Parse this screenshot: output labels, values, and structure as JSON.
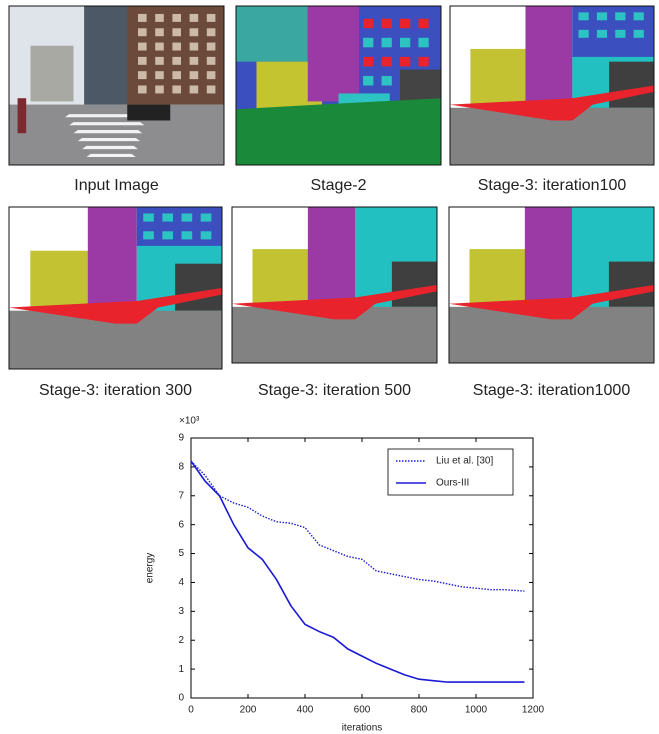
{
  "panels": [
    {
      "caption": "Input Image"
    },
    {
      "caption": "Stage-2"
    },
    {
      "caption": "Stage-3: iteration100"
    },
    {
      "caption": "Stage-3: iteration 300"
    },
    {
      "caption": "Stage-3: iteration 500"
    },
    {
      "caption": "Stage-3: iteration1000"
    }
  ],
  "chart_data": {
    "type": "line",
    "xlabel": "iterations",
    "ylabel": "energy",
    "y_multiplier": "×10³",
    "x": [
      0,
      50,
      100,
      150,
      200,
      250,
      300,
      350,
      400,
      450,
      500,
      550,
      600,
      650,
      700,
      750,
      800,
      850,
      900,
      950,
      1000,
      1050,
      1100,
      1170
    ],
    "series": [
      {
        "name": "Liu et al. [30]",
        "color": "#1a1ad6",
        "line_style": "dotted",
        "values": [
          8.2,
          7.7,
          7.0,
          6.75,
          6.6,
          6.3,
          6.1,
          6.05,
          5.9,
          5.3,
          5.1,
          4.9,
          4.8,
          4.4,
          4.3,
          4.2,
          4.1,
          4.05,
          3.95,
          3.85,
          3.8,
          3.75,
          3.75,
          3.7
        ]
      },
      {
        "name": "Ours-III",
        "color": "#1a1ad6",
        "line_style": "solid",
        "values": [
          8.2,
          7.5,
          7.0,
          6.0,
          5.2,
          4.8,
          4.1,
          3.2,
          2.55,
          2.3,
          2.1,
          1.7,
          1.45,
          1.2,
          1.0,
          0.8,
          0.65,
          0.6,
          0.55,
          0.55,
          0.55,
          0.55,
          0.55,
          0.55
        ]
      }
    ],
    "xlim": [
      0,
      1200
    ],
    "xticks": [
      0,
      200,
      400,
      600,
      800,
      1000,
      1200
    ],
    "ylim": [
      0,
      9
    ],
    "yticks": [
      0,
      1,
      2,
      3,
      4,
      5,
      6,
      7,
      8,
      9
    ],
    "legend": "upper right"
  }
}
